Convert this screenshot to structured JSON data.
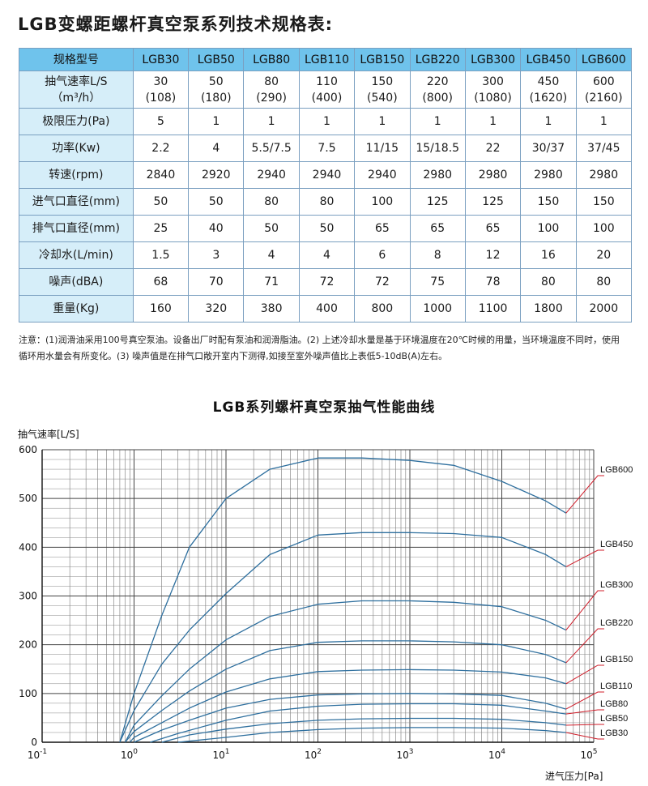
{
  "spec_title": "LGB变螺距螺杆真空泵系列技术规格表:",
  "spec_table": {
    "header_label": "规格型号",
    "models": [
      "LGB30",
      "LGB50",
      "LGB80",
      "LGB110",
      "LGB150",
      "LGB220",
      "LGB300",
      "LGB450",
      "LGB600"
    ],
    "pumping_speed_label": "抽气速率L/S",
    "pumping_speed_unit": "（m³/h）",
    "pumping_speed_ls": [
      "30",
      "50",
      "80",
      "110",
      "150",
      "220",
      "300",
      "450",
      "600"
    ],
    "pumping_speed_m3h": [
      "(108)",
      "(180)",
      "(290)",
      "(400)",
      "(540)",
      "(800)",
      "(1080)",
      "(1620)",
      "(2160)"
    ],
    "rows": [
      {
        "label": "极限压力(Pa)",
        "values": [
          "5",
          "1",
          "1",
          "1",
          "1",
          "1",
          "1",
          "1",
          "1"
        ]
      },
      {
        "label": "功率(Kw)",
        "values": [
          "2.2",
          "4",
          "5.5/7.5",
          "7.5",
          "11/15",
          "15/18.5",
          "22",
          "30/37",
          "37/45"
        ]
      },
      {
        "label": "转速(rpm)",
        "values": [
          "2840",
          "2920",
          "2940",
          "2940",
          "2940",
          "2980",
          "2980",
          "2980",
          "2980"
        ]
      },
      {
        "label": "进气口直径(mm)",
        "values": [
          "50",
          "50",
          "80",
          "80",
          "100",
          "125",
          "125",
          "150",
          "150"
        ]
      },
      {
        "label": "排气口直径(mm)",
        "values": [
          "25",
          "40",
          "50",
          "50",
          "65",
          "65",
          "65",
          "100",
          "100"
        ]
      },
      {
        "label": "冷却水(L/min)",
        "values": [
          "1.5",
          "3",
          "4",
          "4",
          "6",
          "8",
          "12",
          "16",
          "20"
        ]
      },
      {
        "label": "噪声(dBA)",
        "values": [
          "68",
          "70",
          "71",
          "72",
          "72",
          "75",
          "78",
          "80",
          "80"
        ]
      },
      {
        "label": "重量(Kg)",
        "values": [
          "160",
          "320",
          "380",
          "400",
          "800",
          "1000",
          "1100",
          "1800",
          "2000"
        ]
      }
    ]
  },
  "notes": {
    "line1": "注意：(1)润滑油采用100号真空泵油。设备出厂时配有泵油和润滑脂油。(2) 上述冷却水量是基于环境温度在20℃时候的用量，当环境温度不同时，使用",
    "line2": "循环用水量会有所变化。(3) 噪声值是在排气口敞开室内下测得,如接至室外噪声值比上表低5-10dB(A)左右。"
  },
  "chart_data": {
    "type": "line",
    "title": "LGB系列螺杆真空泵抽气性能曲线",
    "ylabel": "抽气速率[L/S]",
    "xlabel": "进气压力[Pa]",
    "x_scale": "log",
    "xlim": [
      0.1,
      100000
    ],
    "ylim": [
      0,
      600
    ],
    "x_ticks": [
      {
        "base": "10",
        "exp": "-1"
      },
      {
        "base": "10",
        "exp": "0"
      },
      {
        "base": "10",
        "exp": "1"
      },
      {
        "base": "10",
        "exp": "2"
      },
      {
        "base": "10",
        "exp": "3"
      },
      {
        "base": "10",
        "exp": "4"
      },
      {
        "base": "10",
        "exp": "5"
      }
    ],
    "y_ticks": [
      "0",
      "100",
      "200",
      "300",
      "400",
      "500",
      "600"
    ],
    "grid": true,
    "line_color": "#2e6f9e",
    "leader_color": "#d01d2a",
    "series": [
      {
        "name": "LGB600",
        "x": [
          0.7,
          1,
          2,
          4,
          10,
          30,
          100,
          300,
          1000,
          3000,
          10000,
          30000,
          50000
        ],
        "y": [
          0,
          100,
          260,
          400,
          500,
          560,
          583,
          583,
          578,
          568,
          535,
          495,
          470
        ]
      },
      {
        "name": "LGB450",
        "x": [
          0.7,
          1,
          2,
          4,
          10,
          30,
          100,
          300,
          1000,
          3000,
          10000,
          30000,
          50000
        ],
        "y": [
          0,
          65,
          160,
          230,
          305,
          385,
          425,
          430,
          430,
          428,
          420,
          385,
          360
        ]
      },
      {
        "name": "LGB300",
        "x": [
          0.8,
          1,
          2,
          4,
          10,
          30,
          100,
          300,
          1000,
          3000,
          10000,
          30000,
          50000
        ],
        "y": [
          0,
          35,
          95,
          150,
          210,
          258,
          283,
          290,
          290,
          287,
          278,
          250,
          230
        ]
      },
      {
        "name": "LGB220",
        "x": [
          0.8,
          1,
          2,
          4,
          10,
          30,
          100,
          300,
          1000,
          3000,
          10000,
          30000,
          50000
        ],
        "y": [
          0,
          22,
          65,
          105,
          150,
          188,
          205,
          208,
          208,
          206,
          200,
          180,
          163
        ]
      },
      {
        "name": "LGB150",
        "x": [
          0.9,
          1,
          2,
          4,
          10,
          30,
          100,
          300,
          1000,
          3000,
          10000,
          30000,
          50000
        ],
        "y": [
          0,
          10,
          40,
          70,
          103,
          130,
          145,
          148,
          149,
          148,
          144,
          132,
          120
        ]
      },
      {
        "name": "LGB110",
        "x": [
          1,
          2,
          4,
          10,
          30,
          100,
          300,
          1000,
          3000,
          10000,
          30000,
          50000
        ],
        "y": [
          0,
          25,
          45,
          70,
          88,
          97,
          99,
          100,
          99,
          96,
          80,
          68
        ]
      },
      {
        "name": "LGB80",
        "x": [
          1.5,
          3,
          10,
          30,
          100,
          300,
          1000,
          3000,
          10000,
          30000,
          50000
        ],
        "y": [
          0,
          18,
          45,
          64,
          74,
          78,
          79,
          79,
          76,
          64,
          58
        ]
      },
      {
        "name": "LGB50",
        "x": [
          2,
          4,
          10,
          30,
          100,
          300,
          1000,
          3000,
          10000,
          30000,
          50000
        ],
        "y": [
          0,
          15,
          27,
          38,
          45,
          48,
          49,
          49,
          47,
          40,
          35
        ]
      },
      {
        "name": "LGB30",
        "x": [
          3,
          10,
          30,
          100,
          300,
          1000,
          3000,
          10000,
          30000,
          50000
        ],
        "y": [
          0,
          10,
          20,
          26,
          29,
          30,
          30,
          29,
          24,
          20
        ]
      }
    ]
  }
}
